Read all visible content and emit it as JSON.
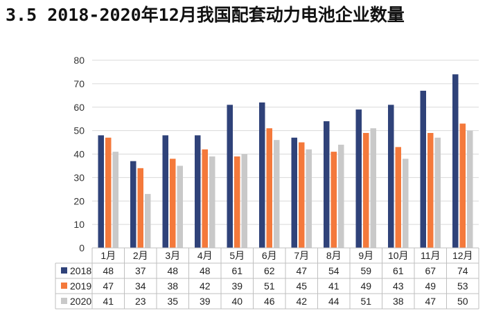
{
  "title": "3.5 2018-2020年12月我国配套动力电池企业数量",
  "chart_data": {
    "type": "bar",
    "title": "3.5 2018-2020年12月我国配套动力电池企业数量",
    "xlabel": "",
    "ylabel": "",
    "ylim": [
      0,
      80
    ],
    "yticks": [
      0,
      10,
      20,
      30,
      40,
      50,
      60,
      70,
      80
    ],
    "grid": true,
    "legend": "data-table-left",
    "categories": [
      "1月",
      "2月",
      "3月",
      "4月",
      "5月",
      "6月",
      "7月",
      "8月",
      "9月",
      "10月",
      "11月",
      "12月"
    ],
    "series": [
      {
        "name": "2018",
        "color": "#2f4279",
        "values": [
          48,
          37,
          48,
          48,
          61,
          62,
          47,
          54,
          59,
          61,
          67,
          74
        ]
      },
      {
        "name": "2019",
        "color": "#f4793b",
        "values": [
          47,
          34,
          38,
          42,
          39,
          51,
          45,
          41,
          49,
          43,
          49,
          53
        ]
      },
      {
        "name": "2020",
        "color": "#c9c9c9",
        "values": [
          41,
          23,
          35,
          39,
          40,
          46,
          42,
          44,
          51,
          38,
          47,
          50
        ]
      }
    ]
  }
}
